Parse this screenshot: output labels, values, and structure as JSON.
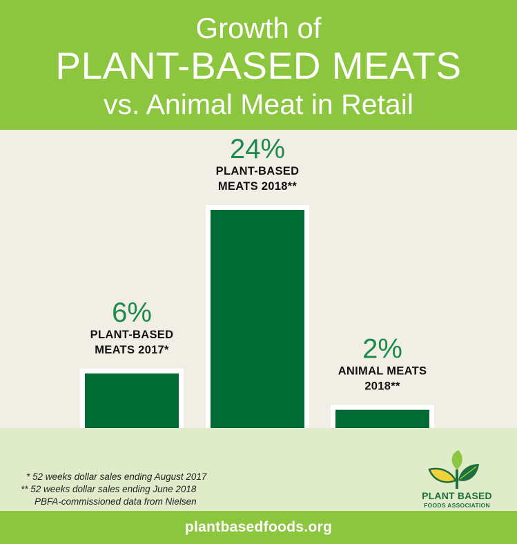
{
  "header": {
    "line1": "Growth of",
    "line2": "PLANT-BASED MEATS",
    "line3": "vs. Animal Meat in Retail"
  },
  "chart_data": {
    "type": "bar",
    "title": "Growth of PLANT-BASED MEATS vs. Animal Meat in Retail",
    "categories": [
      [
        "PLANT-BASED",
        "MEATS 2017*"
      ],
      [
        "PLANT-BASED",
        "MEATS 2018**"
      ],
      [
        "ANIMAL MEATS",
        "2018**"
      ]
    ],
    "values": [
      6,
      24,
      2
    ],
    "value_labels": [
      "6%",
      "24%",
      "2%"
    ],
    "unit": "%",
    "grid": false,
    "colors": {
      "bar": "#006b35",
      "bar_border": "#ffffff",
      "value_text": "#1b8a4a"
    }
  },
  "footnotes": [
    "* 52 weeks dollar sales ending August 2017",
    "** 52 weeks dollar sales ending June 2018",
    "PBFA-commissioned data from Nielsen"
  ],
  "logo": {
    "name_line1": "PLANT BASED",
    "name_line2": "FOODS ASSOCIATION",
    "icon": "leaves-icon"
  },
  "website": "plantbasedfoods.org",
  "colors": {
    "header_green": "#8cc63f",
    "background": "#f1eee6",
    "footer_band": "#e0ecc9",
    "logo_green": "#1e6e3e"
  }
}
